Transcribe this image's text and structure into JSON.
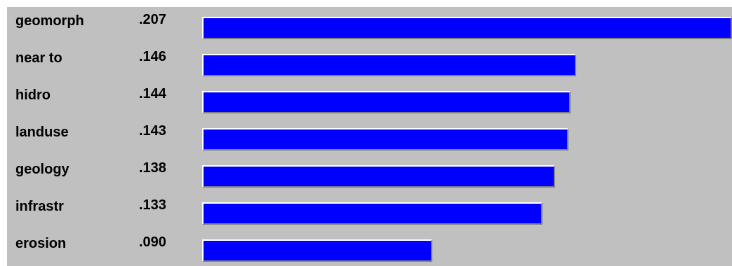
{
  "chart_data": {
    "type": "bar",
    "orientation": "horizontal",
    "categories": [
      "geomorph",
      "near to",
      "hidro",
      "landuse",
      "geology",
      "infrastr",
      "erosion"
    ],
    "values": [
      0.207,
      0.146,
      0.144,
      0.143,
      0.138,
      0.133,
      0.09
    ],
    "value_labels": [
      ".207",
      ".146",
      ".144",
      ".143",
      ".138",
      ".133",
      ".090"
    ],
    "bar_color": "#0000ff",
    "background_color": "#c0c0c0",
    "max_value": 0.207
  }
}
